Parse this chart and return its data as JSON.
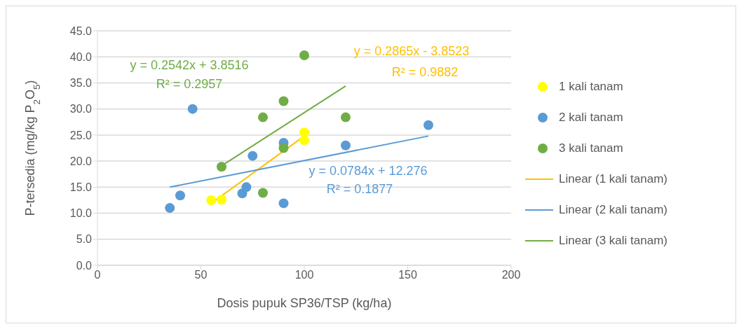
{
  "chart_data": {
    "type": "scatter",
    "xlabel": "Dosis pupuk SP36/TSP (kg/ha)",
    "ylabel": "P-tersedia (mg/kg P$_{2}$O$_{5}$)",
    "xlim": [
      0,
      200
    ],
    "xticks": [
      0,
      50,
      100,
      150,
      200
    ],
    "ylim": [
      0,
      45
    ],
    "yticks": [
      {
        "value": 0,
        "label": "0.0"
      },
      {
        "value": 5,
        "label": "5.0"
      },
      {
        "value": 10,
        "label": "10.0"
      },
      {
        "value": 15,
        "label": "15.0"
      },
      {
        "value": 20,
        "label": "20.0"
      },
      {
        "value": 25,
        "label": "25.0"
      },
      {
        "value": 30,
        "label": "30.0"
      },
      {
        "value": 35,
        "label": "35.0"
      },
      {
        "value": 40,
        "label": "40.0"
      },
      {
        "value": 45,
        "label": "45.0"
      }
    ],
    "grid": "y",
    "legend": "right",
    "series": [
      {
        "name": "1 kali tanam",
        "marker": "circle",
        "color": "#ffff00",
        "x": [
          55,
          60,
          100,
          100
        ],
        "values": [
          12.5,
          12.6,
          25.5,
          24.0
        ]
      },
      {
        "name": "2 kali tanam",
        "marker": "circle",
        "color": "#5b9bd5",
        "x": [
          35,
          40,
          46,
          70,
          72,
          75,
          90,
          90,
          120,
          160
        ],
        "values": [
          11.0,
          13.4,
          30.0,
          13.8,
          15.0,
          21.0,
          23.5,
          11.9,
          23.0,
          26.9
        ]
      },
      {
        "name": "3 kali tanam",
        "marker": "circle",
        "color": "#70ad47",
        "x": [
          60,
          80,
          80,
          90,
          90,
          100,
          120
        ],
        "values": [
          18.9,
          28.4,
          13.9,
          31.5,
          22.5,
          40.3,
          28.4
        ]
      },
      {
        "name": "Linear (1 kali tanam)",
        "type": "line",
        "marker": "none",
        "color": "#ffc000",
        "x": [
          55,
          100
        ],
        "values": [
          11.9,
          24.8
        ]
      },
      {
        "name": "Linear (2 kali tanam)",
        "type": "line",
        "marker": "none",
        "color": "#5b9bd5",
        "x": [
          35,
          160
        ],
        "values": [
          15.0,
          24.8
        ]
      },
      {
        "name": "Linear (3 kali tanam)",
        "type": "line",
        "marker": "none",
        "color": "#70ad47",
        "x": [
          60,
          120
        ],
        "values": [
          19.1,
          34.4
        ]
      }
    ],
    "annotations": [
      "y = 0.2865x - 3.8523",
      "R² = 0.9882",
      "y = 0.0784x + 12.276",
      "R² = 0.1877",
      "y = 0.2542x + 3.8516",
      "R² = 0.2957"
    ]
  }
}
